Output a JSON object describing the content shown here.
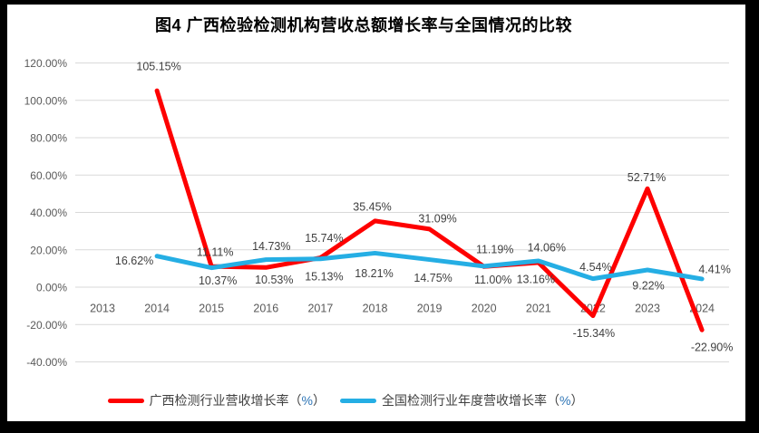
{
  "styles": {
    "frame_bg": "#000000",
    "chart_bg": "#FFFFFF",
    "gridline": "#D9D9D9",
    "axis_text": "#595959",
    "data_label": "#3F3F3F",
    "legend_text": "#404040",
    "legend_percent": "#2E75B6",
    "guangxi_red": "#FE0000",
    "national_blue": "#25AEE4"
  },
  "chart_data": {
    "type": "line",
    "title": "图4  广西检验检测机构营收总额增长率与全国情况的比较",
    "categories": [
      "2013",
      "2014",
      "2015",
      "2016",
      "2017",
      "2018",
      "2019",
      "2020",
      "2021",
      "2022",
      "2023",
      "2024"
    ],
    "y_axis": {
      "min": -40,
      "max": 120,
      "step": 20,
      "tick_labels": [
        "120.00%",
        "100.00%",
        "80.00%",
        "60.00%",
        "40.00%",
        "20.00%",
        "0.00%",
        "-20.00%",
        "-40.00%"
      ]
    },
    "grid": true,
    "legend_position": "bottom",
    "series": [
      {
        "name": "广西检测行业营收增长率（%）",
        "color": "#FE0000",
        "values": [
          null,
          105.15,
          11.11,
          10.53,
          15.74,
          35.45,
          31.09,
          11.0,
          13.16,
          -15.34,
          52.71,
          -22.9
        ],
        "labels": [
          null,
          {
            "text": "105.15%",
            "dx": 2,
            "dy": -27
          },
          {
            "text": "11.11%",
            "dx": 4,
            "dy": -16
          },
          {
            "text": "10.53%",
            "dx": 9,
            "dy": 13
          },
          {
            "text": "15.74%",
            "dx": 4,
            "dy": -22
          },
          {
            "text": "35.45%",
            "dx": -3,
            "dy": -16
          },
          {
            "text": "31.09%",
            "dx": 9,
            "dy": -12
          },
          {
            "text": "11.00%",
            "dx": 10,
            "dy": 14
          },
          {
            "text": "13.16%",
            "dx": -3,
            "dy": 18
          },
          {
            "text": "-15.34%",
            "dx": 1,
            "dy": 19
          },
          {
            "text": "52.71%",
            "dx": -1,
            "dy": -13
          },
          {
            "text": "-22.90%",
            "dx": 11,
            "dy": 19
          }
        ]
      },
      {
        "name": "全国检测行业年度营收增长率（%）",
        "color": "#25AEE4",
        "values": [
          null,
          16.62,
          10.37,
          14.73,
          15.13,
          18.21,
          14.75,
          11.19,
          14.06,
          4.54,
          9.22,
          4.41
        ],
        "labels": [
          null,
          {
            "text": "16.62%",
            "dx": -25,
            "dy": 5
          },
          {
            "text": "10.37%",
            "dx": 7,
            "dy": 14
          },
          {
            "text": "14.73%",
            "dx": 6,
            "dy": -15
          },
          {
            "text": "15.13%",
            "dx": 4,
            "dy": 19
          },
          {
            "text": "18.21%",
            "dx": -1,
            "dy": 22
          },
          {
            "text": "14.75%",
            "dx": 4,
            "dy": 20
          },
          {
            "text": "11.19%",
            "dx": 12,
            "dy": -19
          },
          {
            "text": "14.06%",
            "dx": 9,
            "dy": -15
          },
          {
            "text": "4.54%",
            "dx": 3,
            "dy": -13
          },
          {
            "text": "9.22%",
            "dx": 1,
            "dy": 17
          },
          {
            "text": "4.41%",
            "dx": 14,
            "dy": -11
          }
        ]
      }
    ]
  }
}
